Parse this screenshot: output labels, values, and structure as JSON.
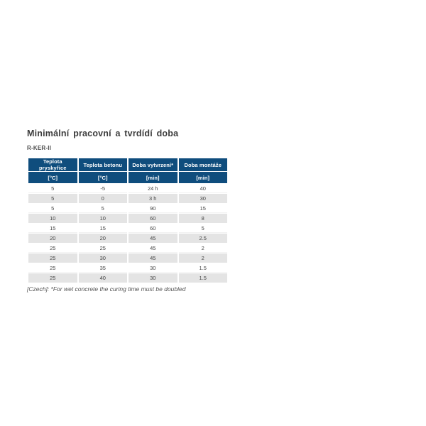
{
  "page": {
    "title": "Minimální pracovní a tvrdídí doba",
    "subtitle": "R-KER-II",
    "footnote": "[Czech]: *For wet concrete the curing time must be doubled"
  },
  "table": {
    "columns": [
      {
        "label": "Teplota pryskyřice",
        "unit": "[°C]"
      },
      {
        "label": "Teplota betonu",
        "unit": "[°C]"
      },
      {
        "label": "Doba vytvrzení*",
        "unit": "[min]"
      },
      {
        "label": "Doba montáže",
        "unit": "[min]"
      }
    ],
    "rows": [
      [
        "5",
        "-5",
        "24 h",
        "40"
      ],
      [
        "5",
        "0",
        "3 h",
        "30"
      ],
      [
        "5",
        "5",
        "90",
        "15"
      ],
      [
        "10",
        "10",
        "60",
        "8"
      ],
      [
        "15",
        "15",
        "60",
        "5"
      ],
      [
        "20",
        "20",
        "45",
        "2.5"
      ],
      [
        "25",
        "25",
        "45",
        "2"
      ],
      [
        "25",
        "30",
        "45",
        "2"
      ],
      [
        "25",
        "35",
        "30",
        "1.5"
      ],
      [
        "25",
        "40",
        "30",
        "1.5"
      ]
    ]
  },
  "colors": {
    "header_bg": "#0f4d7d",
    "header_text": "#ffffff",
    "row_alt_bg": "#e4e4e4",
    "body_text": "#444444"
  }
}
